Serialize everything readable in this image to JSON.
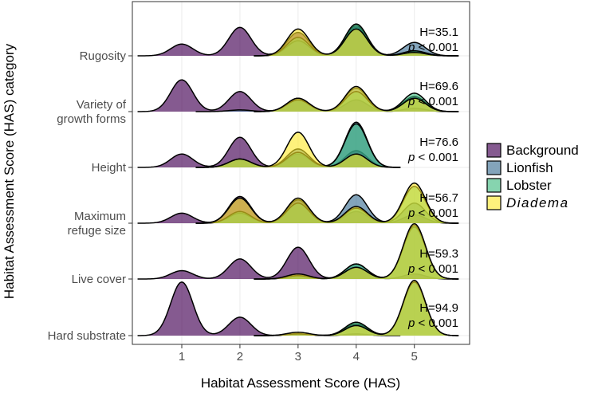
{
  "chart_data": {
    "type": "area",
    "subtype": "ridgeline-density",
    "xlabel": "Habitat Assessment Score (HAS)",
    "ylabel": "Habitat Assessment Score (HAS) category",
    "x_ticks": [
      "1",
      "2",
      "3",
      "4",
      "5"
    ],
    "xlim": [
      0.15,
      5.95
    ],
    "grid": true,
    "legend_position": "right",
    "series": [
      {
        "name": "Background",
        "color": "#440154",
        "opacity": 0.65
      },
      {
        "name": "Lionfish",
        "color": "#31688e",
        "opacity": 0.6
      },
      {
        "name": "Lobster",
        "color": "#35b779",
        "opacity": 0.6
      },
      {
        "name": "Diadema",
        "color": "#fde725",
        "opacity": 0.6
      }
    ],
    "categories": [
      {
        "name": "Rugosity",
        "label_lines": [
          "Rugosity"
        ],
        "stat_h": "H=35.1",
        "stat_p": "p < 0.001",
        "densities": {
          "Background": [
            [
              1,
              0.35
            ],
            [
              2,
              0.85
            ],
            [
              3,
              0.7
            ],
            [
              4,
              0.85
            ],
            [
              5,
              0.12
            ]
          ],
          "Lionfish": [
            [
              3,
              0.45
            ],
            [
              4,
              0.9
            ],
            [
              5,
              0.4
            ]
          ],
          "Lobster": [
            [
              3,
              0.55
            ],
            [
              4,
              0.95
            ],
            [
              5,
              0.15
            ]
          ],
          "Diadema": [
            [
              3,
              0.8
            ],
            [
              4,
              0.8
            ],
            [
              5,
              0.1
            ]
          ]
        }
      },
      {
        "name": "Variety of growth forms",
        "label_lines": [
          "Variety of",
          "growth forms"
        ],
        "stat_h": "H=69.6",
        "stat_p": "p < 0.001",
        "densities": {
          "Background": [
            [
              1,
              0.95
            ],
            [
              2,
              0.6
            ],
            [
              3,
              0.35
            ],
            [
              4,
              0.35
            ],
            [
              5,
              0.1
            ]
          ],
          "Lionfish": [
            [
              2,
              0.05
            ],
            [
              3,
              0.4
            ],
            [
              4,
              0.7
            ],
            [
              5,
              0.45
            ]
          ],
          "Lobster": [
            [
              3,
              0.35
            ],
            [
              4,
              0.6
            ],
            [
              5,
              0.55
            ]
          ],
          "Diadema": [
            [
              3,
              0.4
            ],
            [
              4,
              0.75
            ],
            [
              5,
              0.4
            ]
          ]
        }
      },
      {
        "name": "Height",
        "label_lines": [
          "Height"
        ],
        "stat_h": "H=76.6",
        "stat_p": "p < 0.001",
        "densities": {
          "Background": [
            [
              1,
              0.4
            ],
            [
              2,
              0.9
            ],
            [
              3,
              0.4
            ],
            [
              4,
              0.5
            ]
          ],
          "Lionfish": [
            [
              2,
              0.25
            ],
            [
              3,
              0.55
            ],
            [
              4,
              1.35
            ]
          ],
          "Lobster": [
            [
              2,
              0.25
            ],
            [
              3,
              0.45
            ],
            [
              4,
              1.3
            ]
          ],
          "Diadema": [
            [
              2,
              0.25
            ],
            [
              3,
              1.05
            ],
            [
              4,
              0.4
            ]
          ]
        }
      },
      {
        "name": "Maximum refuge size",
        "label_lines": [
          "Maximum",
          "refuge size"
        ],
        "stat_h": "H=56.7",
        "stat_p": "p < 0.001",
        "densities": {
          "Background": [
            [
              1,
              0.3
            ],
            [
              2,
              0.8
            ],
            [
              3,
              0.7
            ],
            [
              4,
              0.35
            ],
            [
              5,
              0.25
            ]
          ],
          "Lionfish": [
            [
              2,
              0.3
            ],
            [
              3,
              0.7
            ],
            [
              4,
              0.85
            ],
            [
              5,
              0.6
            ]
          ],
          "Lobster": [
            [
              2,
              0.35
            ],
            [
              3,
              0.6
            ],
            [
              4,
              0.45
            ],
            [
              5,
              1.1
            ]
          ],
          "Diadema": [
            [
              2,
              0.75
            ],
            [
              3,
              0.75
            ],
            [
              4,
              0.5
            ],
            [
              5,
              1.2
            ]
          ]
        }
      },
      {
        "name": "Live cover",
        "label_lines": [
          "Live cover"
        ],
        "stat_h": "H=59.3",
        "stat_p": "p < 0.001",
        "densities": {
          "Background": [
            [
              1,
              0.25
            ],
            [
              2,
              0.6
            ],
            [
              3,
              0.95
            ],
            [
              4,
              0.35
            ],
            [
              5,
              0.15
            ]
          ],
          "Lionfish": [
            [
              3,
              0.1
            ],
            [
              4,
              0.45
            ],
            [
              5,
              1.55
            ]
          ],
          "Lobster": [
            [
              3,
              0.1
            ],
            [
              4,
              0.45
            ],
            [
              5,
              1.6
            ]
          ],
          "Diadema": [
            [
              3,
              0.15
            ],
            [
              4,
              0.35
            ],
            [
              5,
              1.65
            ]
          ]
        }
      },
      {
        "name": "Hard substrate",
        "label_lines": [
          "Hard substrate"
        ],
        "stat_h": "H=94.9",
        "stat_p": "p < 0.001",
        "densities": {
          "Background": [
            [
              1,
              1.6
            ],
            [
              2,
              0.55
            ],
            [
              3,
              0.05
            ],
            [
              4,
              0.05
            ]
          ],
          "Lionfish": [
            [
              3,
              0.05
            ],
            [
              4,
              0.35
            ],
            [
              5,
              1.6
            ]
          ],
          "Lobster": [
            [
              3,
              0.05
            ],
            [
              4,
              0.4
            ],
            [
              5,
              1.6
            ]
          ],
          "Diadema": [
            [
              3,
              0.1
            ],
            [
              4,
              0.3
            ],
            [
              5,
              1.65
            ]
          ]
        }
      }
    ]
  }
}
